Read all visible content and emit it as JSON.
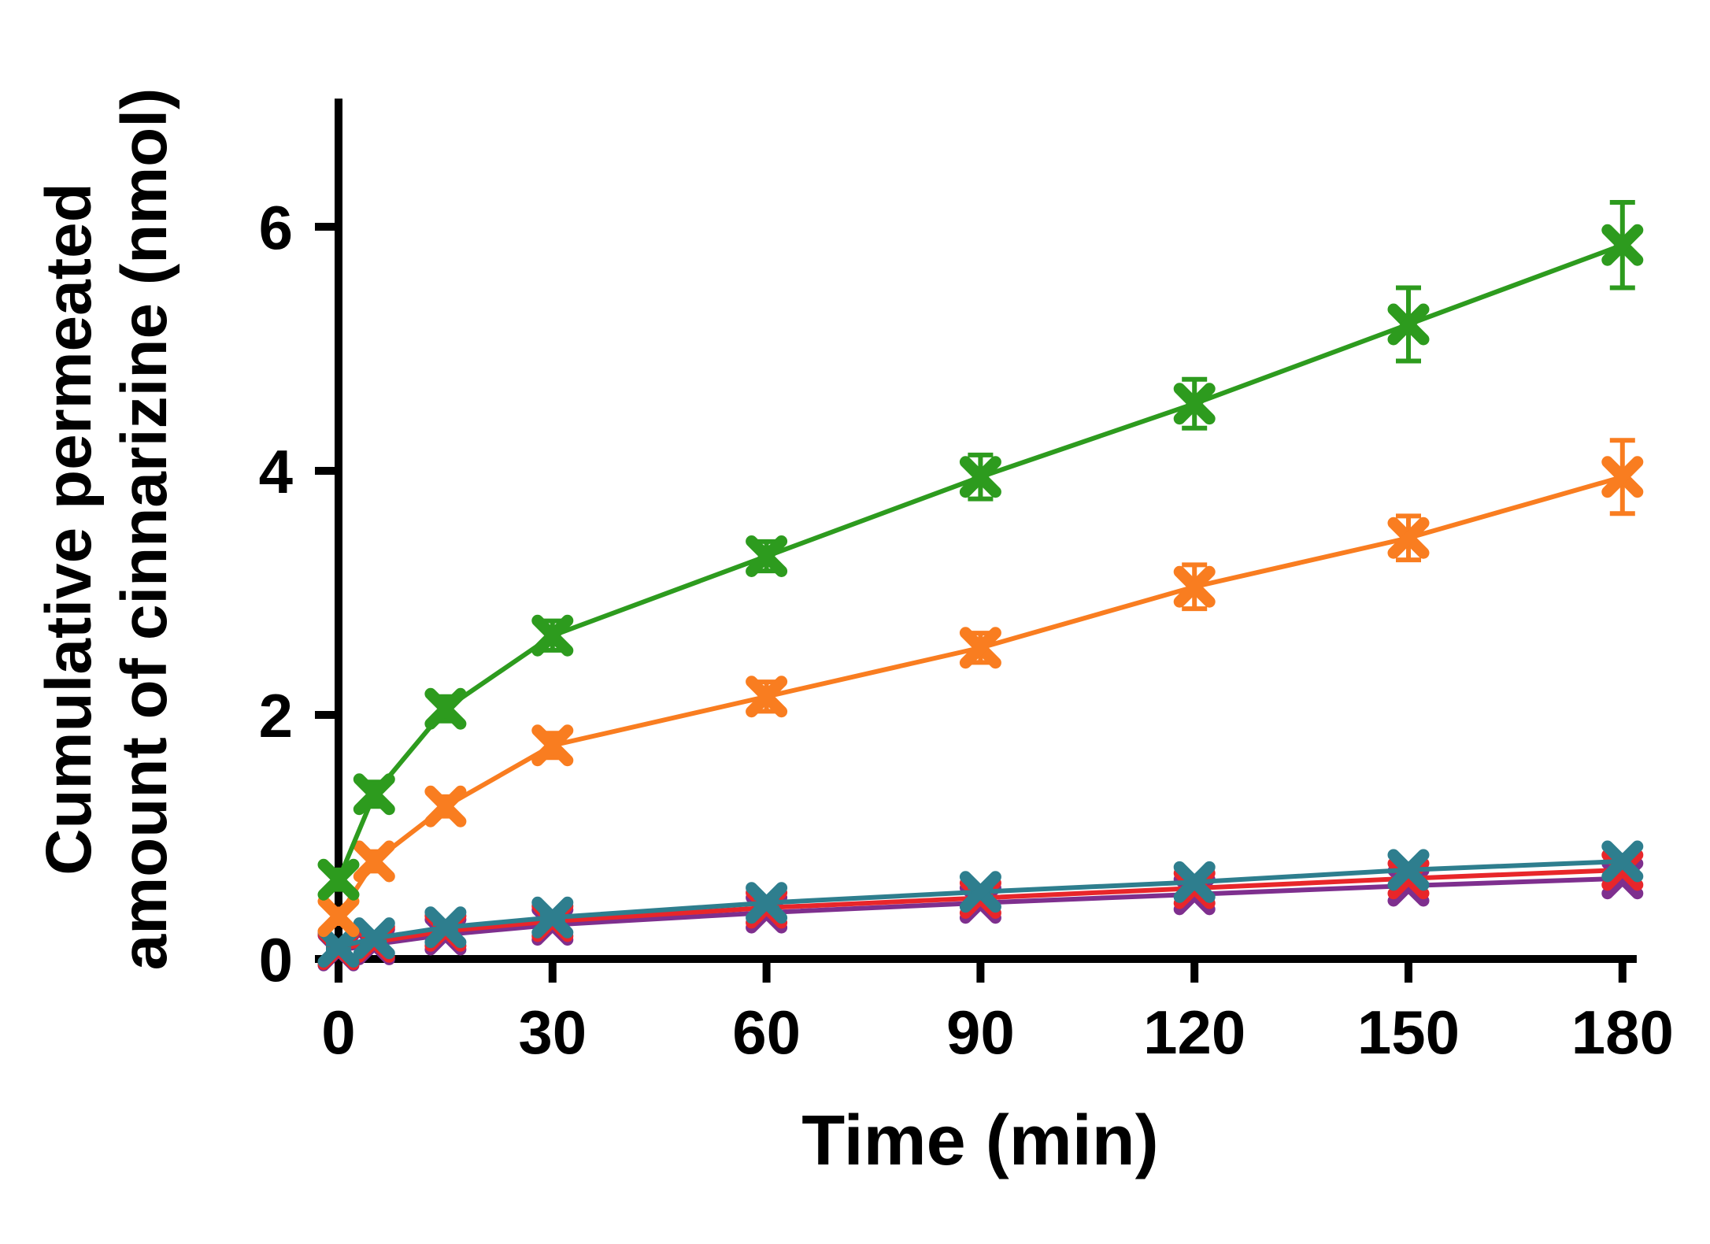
{
  "page": {
    "background": "#ffffff"
  },
  "chart_data": {
    "type": "line",
    "title": "",
    "xlabel": "Time (min)",
    "ylabel_lines": [
      "Cumulative permeated",
      "amount of cinnarizine (nmol)"
    ],
    "x": [
      0,
      5,
      15,
      30,
      60,
      90,
      120,
      150,
      180
    ],
    "xticks": [
      0,
      30,
      60,
      90,
      120,
      150,
      180
    ],
    "yticks": [
      0,
      2,
      4,
      6
    ],
    "xlim": [
      0,
      182
    ],
    "ylim": [
      0,
      7.05
    ],
    "grid": false,
    "legend": "none",
    "marker": "x",
    "axis_color": "#000000",
    "series": [
      {
        "name": "series-purple",
        "color": "#7e2f8e",
        "values": [
          0.07,
          0.12,
          0.2,
          0.28,
          0.38,
          0.46,
          0.53,
          0.6,
          0.66
        ],
        "errors": [
          0.02,
          0.02,
          0.03,
          0.03,
          0.03,
          0.04,
          0.04,
          0.04,
          0.05
        ]
      },
      {
        "name": "series-red",
        "color": "#e8262a",
        "values": [
          0.08,
          0.14,
          0.23,
          0.31,
          0.42,
          0.5,
          0.58,
          0.66,
          0.73
        ],
        "errors": [
          0.02,
          0.02,
          0.03,
          0.03,
          0.03,
          0.04,
          0.04,
          0.04,
          0.05
        ]
      },
      {
        "name": "series-teal",
        "color": "#2e7e8e",
        "values": [
          0.1,
          0.17,
          0.26,
          0.34,
          0.46,
          0.55,
          0.63,
          0.73,
          0.8
        ],
        "errors": [
          0.02,
          0.03,
          0.03,
          0.03,
          0.04,
          0.04,
          0.05,
          0.05,
          0.05
        ]
      },
      {
        "name": "series-orange",
        "color": "#f97d20",
        "values": [
          0.35,
          0.8,
          1.25,
          1.75,
          2.15,
          2.55,
          3.05,
          3.45,
          3.95
        ],
        "errors": [
          0.06,
          0.08,
          0.08,
          0.1,
          0.12,
          0.12,
          0.18,
          0.18,
          0.3
        ]
      },
      {
        "name": "series-green",
        "color": "#2d9b1e",
        "values": [
          0.65,
          1.35,
          2.05,
          2.65,
          3.3,
          3.95,
          4.55,
          5.2,
          5.85
        ],
        "errors": [
          0.08,
          0.1,
          0.1,
          0.12,
          0.12,
          0.18,
          0.2,
          0.3,
          0.35
        ]
      }
    ]
  }
}
